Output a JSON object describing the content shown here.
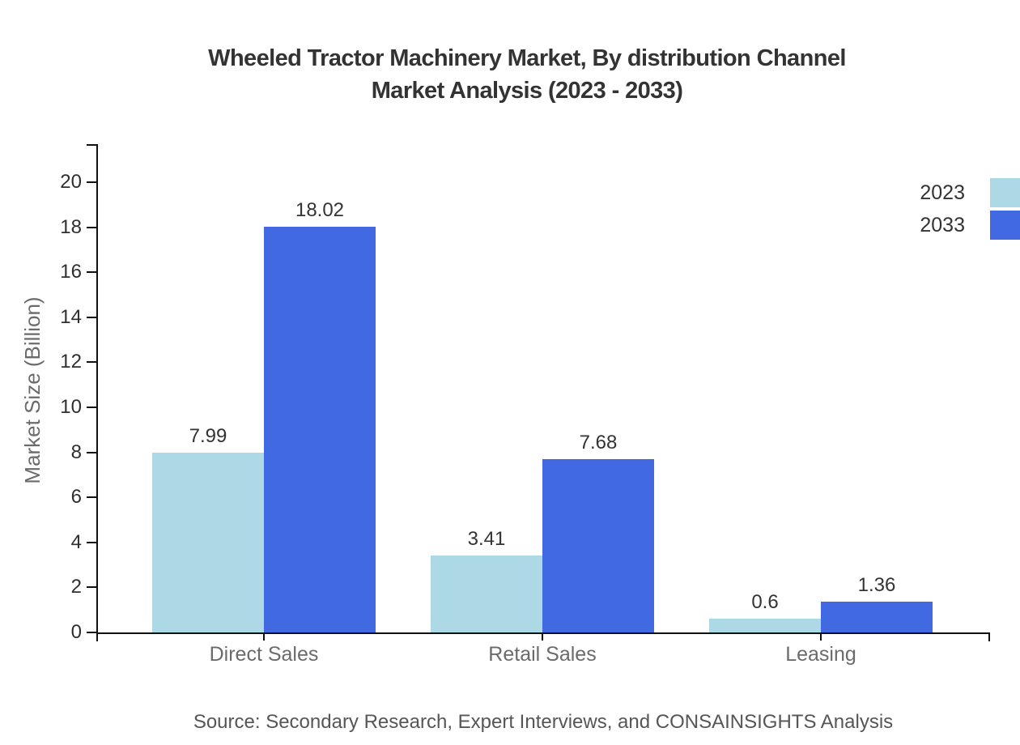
{
  "title": {
    "line1": "Wheeled Tractor Machinery Market, By distribution Channel",
    "line2": "Market Analysis (2023 - 2033)"
  },
  "source": "Source: Secondary Research, Expert Interviews, and CONSAINSIGHTS Analysis",
  "chart_data": {
    "type": "bar",
    "title": "Wheeled Tractor Machinery Market, By distribution Channel Market Analysis (2023 - 2033)",
    "categories": [
      "Direct Sales",
      "Retail Sales",
      "Leasing"
    ],
    "series": [
      {
        "name": "2023",
        "color": "#ADD8E6",
        "values": [
          7.99,
          3.41,
          0.6
        ]
      },
      {
        "name": "2033",
        "color": "#4169E1",
        "values": [
          18.02,
          7.68,
          1.36
        ]
      }
    ],
    "xlabel": "",
    "ylabel": "Market Size (Billion)",
    "ylim": [
      0,
      20
    ],
    "yticks": [
      0,
      2,
      4,
      6,
      8,
      10,
      12,
      14,
      16,
      18,
      20
    ],
    "grid": false,
    "legend_position": "top-right",
    "axis_color": "#111111",
    "label_color": "#333333",
    "category_label_color": "#6b6b6b"
  }
}
